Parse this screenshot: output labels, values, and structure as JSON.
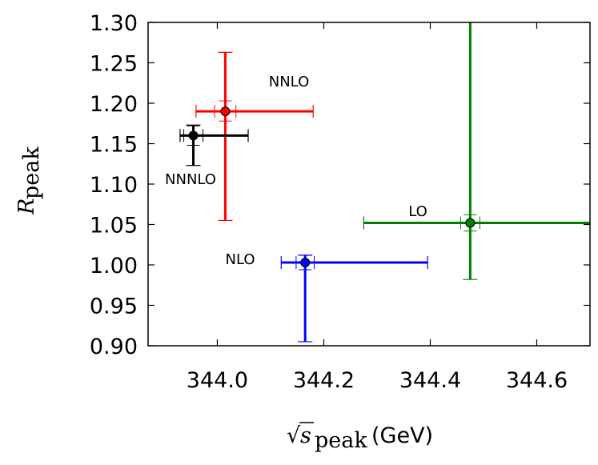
{
  "chart_data": {
    "type": "scatter",
    "xlabel": {
      "symbol": "s",
      "subscript": "peak",
      "unit": "(GeV)"
    },
    "ylabel": {
      "symbol": "R",
      "subscript": "peak"
    },
    "xlim": [
      343.87,
      344.7
    ],
    "ylim": [
      0.9,
      1.3
    ],
    "x_ticks": [
      {
        "value": 344.0,
        "label": "344.0"
      },
      {
        "value": 344.2,
        "label": "344.2"
      },
      {
        "value": 344.4,
        "label": "344.4"
      },
      {
        "value": 344.6,
        "label": "344.6"
      }
    ],
    "y_ticks": [
      {
        "value": 0.9,
        "label": "0.90"
      },
      {
        "value": 0.95,
        "label": "0.95"
      },
      {
        "value": 1.0,
        "label": "1.00"
      },
      {
        "value": 1.05,
        "label": "1.05"
      },
      {
        "value": 1.1,
        "label": "1.10"
      },
      {
        "value": 1.15,
        "label": "1.15"
      },
      {
        "value": 1.2,
        "label": "1.20"
      },
      {
        "value": 1.25,
        "label": "1.25"
      },
      {
        "value": 1.3,
        "label": "1.30"
      }
    ],
    "grid": false,
    "legend": "none",
    "series": [
      {
        "name": "LO",
        "color": "#008000",
        "x": 344.475,
        "y": 1.052,
        "x_err_total": [
          344.275,
          344.75
        ],
        "y_err_total": [
          0.982,
          1.35
        ],
        "x_err_inner": [
          344.457,
          344.493
        ],
        "y_err_inner": [
          1.042,
          1.062
        ]
      },
      {
        "name": "NLO",
        "color": "#0000ff",
        "x": 344.165,
        "y": 1.003,
        "x_err_total": [
          344.12,
          344.395
        ],
        "y_err_total": [
          0.905,
          1.012
        ],
        "x_err_inner": [
          344.148,
          344.182
        ],
        "y_err_inner": [
          0.994,
          1.012
        ]
      },
      {
        "name": "NNLO",
        "color": "#ff0000",
        "x": 344.015,
        "y": 1.19,
        "x_err_total": [
          343.96,
          344.18
        ],
        "y_err_total": [
          1.055,
          1.263
        ],
        "x_err_inner": [
          343.995,
          344.035
        ],
        "y_err_inner": [
          1.178,
          1.203
        ]
      },
      {
        "name": "NNNLO",
        "color": "#000000",
        "x": 343.955,
        "y": 1.16,
        "x_err_total": [
          343.93,
          344.058
        ],
        "y_err_total": [
          1.123,
          1.173
        ],
        "x_err_inner": [
          343.937,
          343.973
        ],
        "y_err_inner": [
          1.148,
          1.172
        ]
      }
    ]
  }
}
